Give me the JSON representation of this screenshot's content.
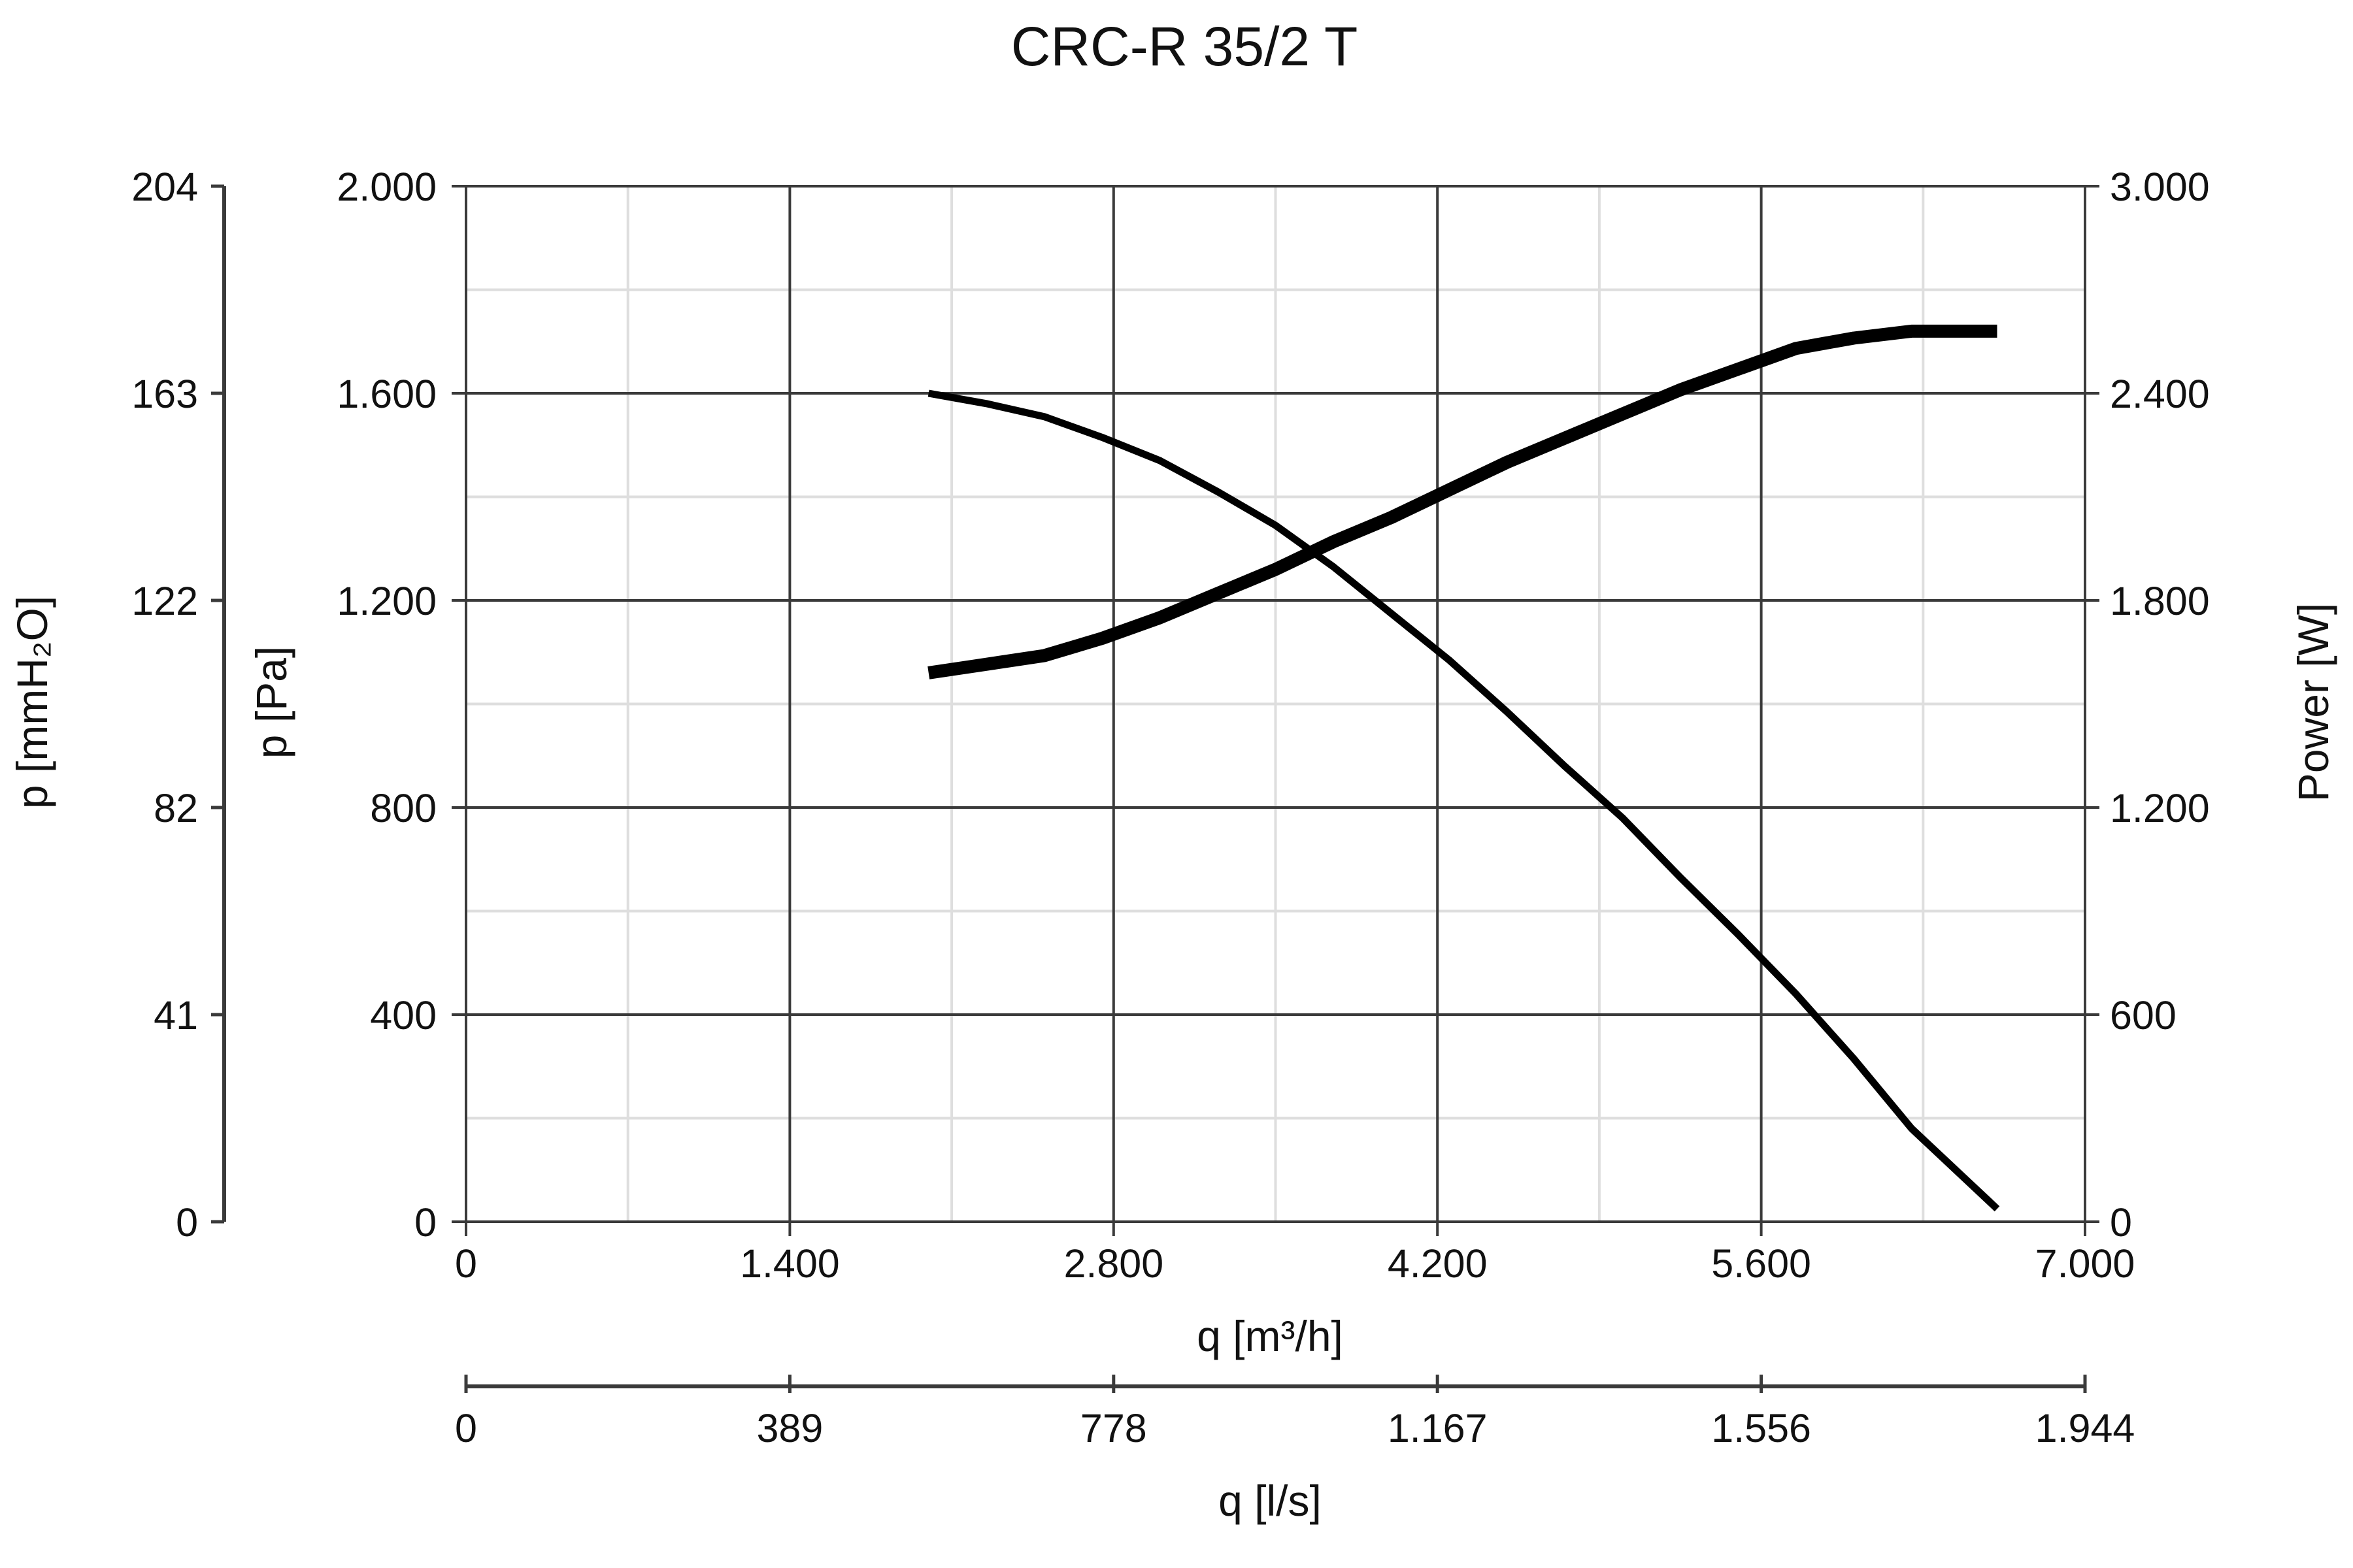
{
  "chart_data": {
    "type": "line",
    "title": "CRC-R 35/2 T",
    "x_axis": {
      "label": "q [m³/h]",
      "range": [
        0,
        7000
      ],
      "ticks": [
        0,
        1400,
        2800,
        4200,
        5600,
        7000
      ],
      "tick_labels": [
        "0",
        "1.400",
        "2.800",
        "4.200",
        "5.600",
        "7.000"
      ]
    },
    "x2_axis": {
      "label": "q [l/s]",
      "tick_labels": [
        "0",
        "389",
        "778",
        "1.167",
        "1.556",
        "1.944"
      ]
    },
    "y_left_axis": {
      "label": "p [Pa]",
      "range": [
        0,
        2000
      ],
      "ticks": [
        0,
        400,
        800,
        1200,
        1600,
        2000
      ],
      "tick_labels": [
        "0",
        "400",
        "800",
        "1.200",
        "1.600",
        "2.000"
      ]
    },
    "y_left2_axis": {
      "label": "p [mmH₂O]",
      "tick_labels": [
        "0",
        "41",
        "82",
        "122",
        "163",
        "204"
      ]
    },
    "y_right_axis": {
      "label": "Power [W]",
      "range": [
        0,
        3000
      ],
      "ticks": [
        0,
        600,
        1200,
        1800,
        2400,
        3000
      ],
      "tick_labels": [
        "0",
        "600",
        "1.200",
        "1.800",
        "2.400",
        "3.000"
      ]
    },
    "grid": true,
    "series": [
      {
        "axis": "left",
        "color": "#000000",
        "x": [
          2000,
          2250,
          2500,
          2750,
          3000,
          3250,
          3500,
          3750,
          4000,
          4250,
          4500,
          4750,
          5000,
          5250,
          5500,
          5750,
          6000,
          6250,
          6620
        ],
        "values": [
          1600,
          1580,
          1555,
          1515,
          1470,
          1410,
          1345,
          1265,
          1175,
          1085,
          985,
          880,
          780,
          665,
          555,
          440,
          315,
          180,
          25
        ]
      },
      {
        "axis": "right",
        "color": "#000000",
        "x": [
          2000,
          2200,
          2500,
          2750,
          3000,
          3250,
          3500,
          3750,
          4000,
          4250,
          4500,
          4750,
          5000,
          5250,
          5500,
          5750,
          6000,
          6250,
          6620
        ],
        "values": [
          1590,
          1610,
          1640,
          1690,
          1750,
          1820,
          1890,
          1970,
          2040,
          2120,
          2200,
          2270,
          2340,
          2410,
          2470,
          2530,
          2560,
          2580,
          2580
        ]
      }
    ]
  }
}
